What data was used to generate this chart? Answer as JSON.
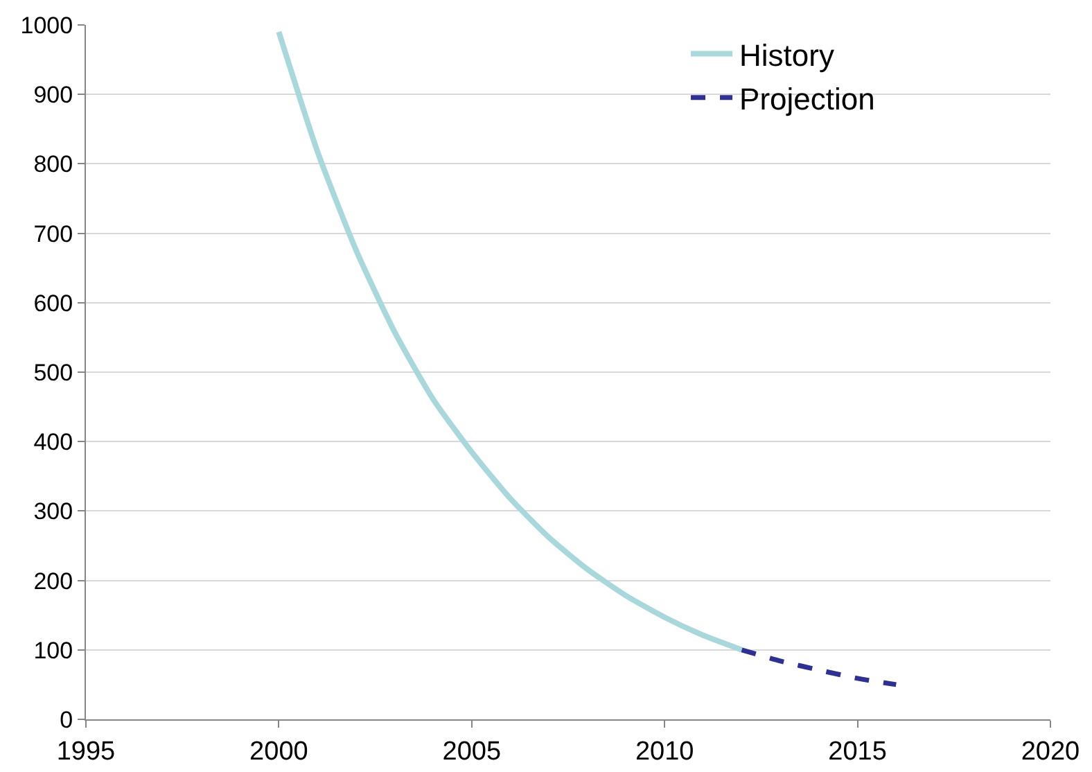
{
  "chart_data": {
    "type": "line",
    "xlim": [
      1995,
      2020
    ],
    "xticks": [
      1995,
      2000,
      2005,
      2010,
      2015,
      2020
    ],
    "ylim": [
      0,
      1000
    ],
    "yticks": [
      0,
      100,
      200,
      300,
      400,
      500,
      600,
      700,
      800,
      900,
      1000
    ],
    "grid": "y",
    "legend": "top right",
    "marker": "none",
    "series": [
      {
        "name": "History",
        "color": "#a8d8dc",
        "line_style": "solid",
        "x": [
          2000,
          2001,
          2002,
          2003,
          2004,
          2005,
          2006,
          2007,
          2008,
          2009,
          2010,
          2011,
          2012
        ],
        "values": [
          990,
          818,
          676,
          558,
          461,
          385,
          318,
          262,
          216,
          178,
          147,
          121,
          100
        ]
      },
      {
        "name": "Projection",
        "color": "#2e3192",
        "line_style": "dashed",
        "x": [
          2012,
          2013,
          2014,
          2015,
          2016
        ],
        "values": [
          100,
          84,
          71,
          59,
          50
        ]
      }
    ]
  }
}
